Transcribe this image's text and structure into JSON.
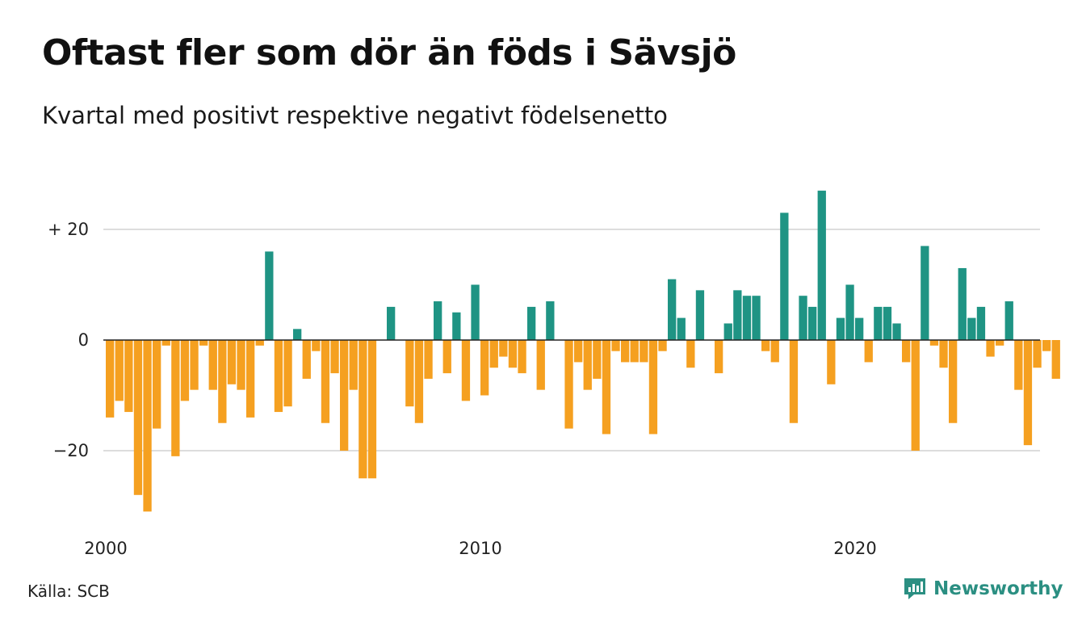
{
  "header": {
    "title": "Oftast fler som dör än föds i Sävsjö",
    "subtitle": "Kvartal med positivt respektive negativt födelsenetto"
  },
  "footer": {
    "source": "Källa: SCB",
    "brand": "Newsworthy"
  },
  "colors": {
    "positive": "#1f9484",
    "negative": "#f5a020",
    "grid": "#dddddd",
    "brand": "#2b8f82"
  },
  "chart_data": {
    "type": "bar",
    "x_start": "2000 Q1",
    "quarters_per_year": 4,
    "yticks": [
      {
        "value": 20,
        "label": "+ 20"
      },
      {
        "value": 0,
        "label": "0"
      },
      {
        "value": -20,
        "label": "−20"
      }
    ],
    "xticks": [
      {
        "year": 2000,
        "label": "2000"
      },
      {
        "year": 2010,
        "label": "2010"
      },
      {
        "year": 2020,
        "label": "2020"
      }
    ],
    "ylim": [
      -32,
      28
    ],
    "grid": true,
    "values": [
      -14,
      -11,
      -13,
      -28,
      -31,
      -16,
      -1,
      -21,
      -11,
      -9,
      -1,
      -9,
      -15,
      -8,
      -9,
      -14,
      -1,
      16,
      -13,
      -12,
      2,
      -7,
      -2,
      -15,
      -6,
      -20,
      -9,
      -25,
      -25,
      0,
      6,
      0,
      -12,
      -15,
      -7,
      7,
      -6,
      5,
      -11,
      10,
      -10,
      -5,
      -3,
      -5,
      -6,
      6,
      -9,
      7,
      0,
      -16,
      -4,
      -9,
      -7,
      -17,
      -2,
      -4,
      -4,
      -4,
      -17,
      -2,
      11,
      4,
      -5,
      9,
      0,
      -6,
      3,
      9,
      8,
      8,
      -2,
      -4,
      23,
      -15,
      8,
      6,
      27,
      -8,
      4,
      10,
      4,
      -4,
      6,
      6,
      3,
      -4,
      -20,
      17,
      -1,
      -5,
      -15,
      13,
      4,
      6,
      -3,
      -1,
      7,
      -9,
      -19,
      -5,
      -2,
      -7
    ]
  }
}
